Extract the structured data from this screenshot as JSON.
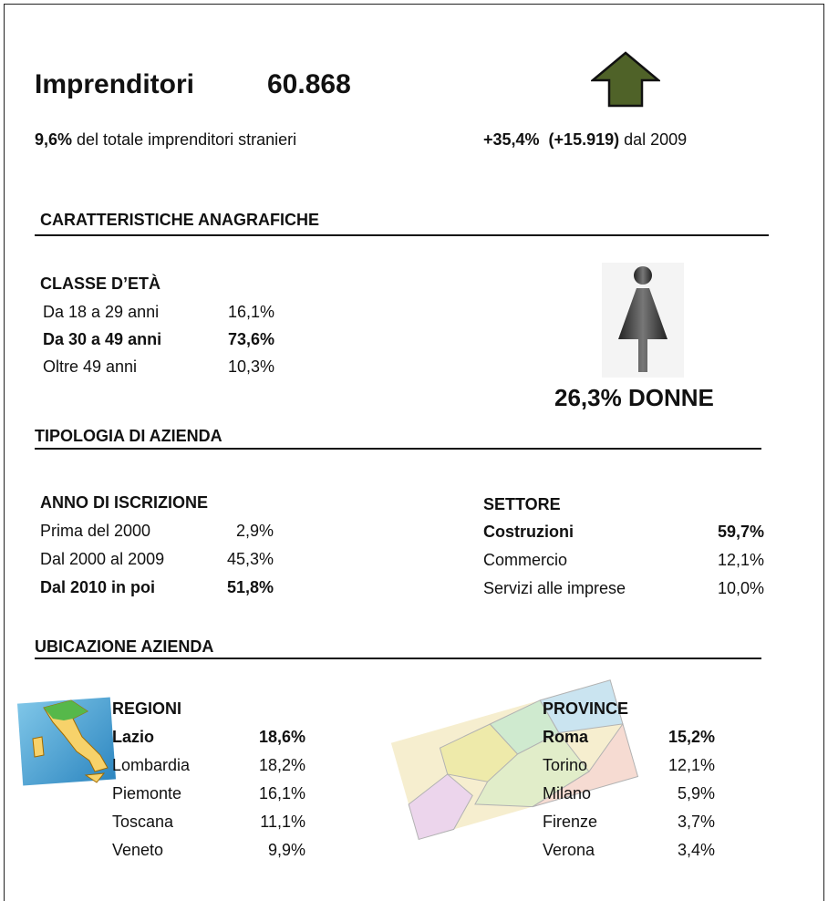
{
  "header": {
    "title": "Imprenditori",
    "total": "60.868",
    "share_value": "9,6%",
    "share_text": " del totale imprenditori stranieri",
    "growth_value": "+35,4%  (+15.919)",
    "growth_text": " dal 2009"
  },
  "anagrafica": {
    "title": "CARATTERISTICHE ANAGRAFICHE",
    "age": {
      "title": "CLASSE D’ETÀ",
      "rows": [
        {
          "label": "Da 18 a 29 anni",
          "value": "16,1%",
          "bold": false
        },
        {
          "label": "Da 30 a 49 anni",
          "value": "73,6%",
          "bold": true
        },
        {
          "label": "Oltre 49 anni",
          "value": "10,3%",
          "bold": false
        }
      ]
    },
    "women": "26,3% DONNE"
  },
  "tipologia": {
    "title": "TIPOLOGIA DI AZIENDA",
    "anno": {
      "title": "ANNO DI ISCRIZIONE",
      "rows": [
        {
          "label": "Prima del 2000",
          "value": "2,9%",
          "bold": false
        },
        {
          "label": "Dal 2000 al 2009",
          "value": "45,3%",
          "bold": false
        },
        {
          "label": "Dal 2010 in poi",
          "value": "51,8%",
          "bold": true
        }
      ]
    },
    "settore": {
      "title": "SETTORE",
      "rows": [
        {
          "label": "Costruzioni",
          "value": "59,7%",
          "bold": true
        },
        {
          "label": "Commercio",
          "value": "12,1%",
          "bold": false
        },
        {
          "label": "Servizi alle imprese",
          "value": "10,0%",
          "bold": false
        }
      ]
    }
  },
  "ubicazione": {
    "title": "UBICAZIONE AZIENDA",
    "regioni": {
      "title": "REGIONI",
      "rows": [
        {
          "label": "Lazio",
          "value": "18,6%",
          "bold": true
        },
        {
          "label": "Lombardia",
          "value": "18,2%",
          "bold": false
        },
        {
          "label": "Piemonte",
          "value": "16,1%",
          "bold": false
        },
        {
          "label": "Toscana",
          "value": "11,1%",
          "bold": false
        },
        {
          "label": "Veneto",
          "value": "9,9%",
          "bold": false
        }
      ]
    },
    "province": {
      "title": "PROVINCE",
      "rows": [
        {
          "label": "Roma",
          "value": "15,2%",
          "bold": true
        },
        {
          "label": "Torino",
          "value": "12,1%",
          "bold": false
        },
        {
          "label": "Milano",
          "value": "5,9%",
          "bold": false
        },
        {
          "label": "Firenze",
          "value": "3,7%",
          "bold": false
        },
        {
          "label": "Verona",
          "value": "3,4%",
          "bold": false
        }
      ]
    }
  }
}
